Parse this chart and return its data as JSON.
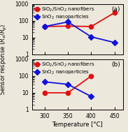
{
  "panel_a": {
    "red_x": [
      300,
      350,
      400,
      450
    ],
    "red_y": [
      45,
      48,
      45,
      300
    ],
    "blue_x": [
      300,
      350,
      400,
      450
    ],
    "blue_y": [
      45,
      85,
      11,
      5
    ],
    "ylim_bottom": 1,
    "ylim_top": 1000,
    "yticks": [
      1,
      10,
      100,
      1000
    ],
    "label": "(a)"
  },
  "panel_b": {
    "red_x": [
      300,
      350,
      400
    ],
    "red_y": [
      10,
      10,
      100
    ],
    "blue_x": [
      300,
      350,
      400
    ],
    "blue_y": [
      45,
      32,
      6
    ],
    "ylim_bottom": 1,
    "ylim_top": 1000,
    "yticks": [
      1,
      10,
      100,
      1000
    ],
    "label": "(b)"
  },
  "red_color": "#dd1111",
  "blue_color": "#1111dd",
  "red_label": "SiO$_2$/SnO$_2$ nanofibers",
  "blue_label": "SnO$_2$ nanoparticles",
  "ylabel": "Sensor response ($R_a$/$R_g$)",
  "xlabel": "Temperature [°C]",
  "xticks": [
    300,
    350,
    400,
    450
  ],
  "xlim": [
    273,
    468
  ],
  "legend_fontsize": 5.0,
  "tick_fontsize": 5.5,
  "label_fontsize": 6.0,
  "panel_label_fontsize": 6.5,
  "marker_size_circle": 4.5,
  "marker_size_diamond": 4.0,
  "line_width": 1.3,
  "background_color": "#ede8dc"
}
